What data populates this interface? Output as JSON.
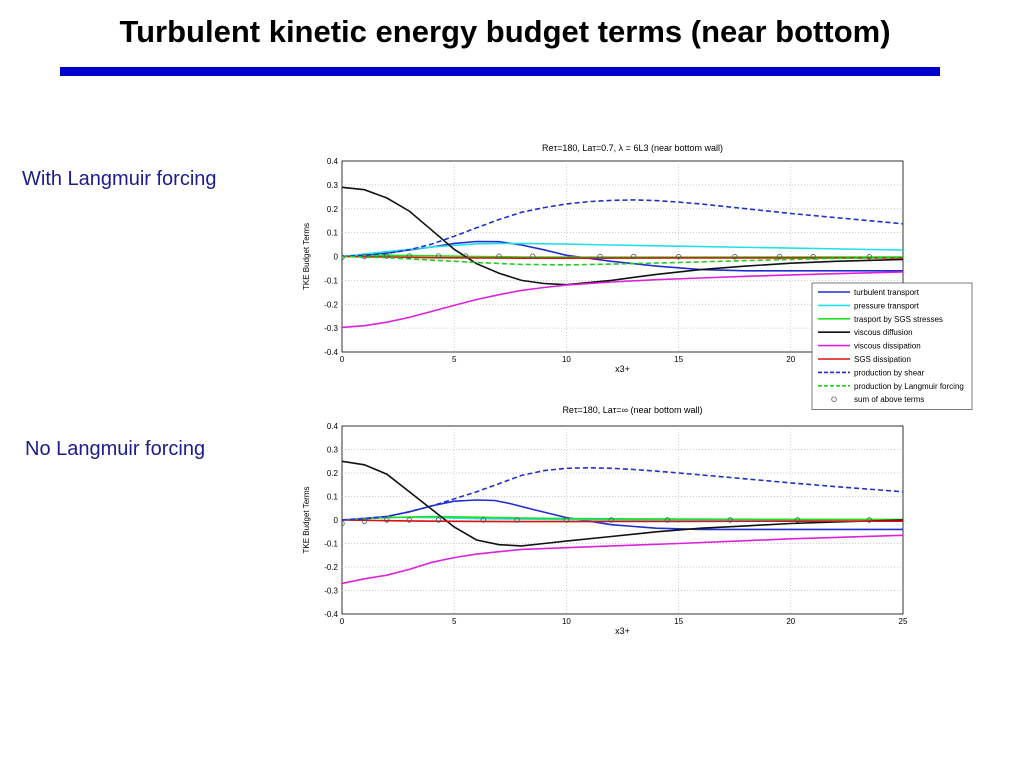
{
  "slide": {
    "title": "Turbulent kinetic energy budget terms (near bottom)",
    "label_top": "With Langmuir forcing",
    "label_bottom": "No Langmuir forcing"
  },
  "chart_data": [
    {
      "type": "line",
      "title": "Reτ=180, Laτ=0.7, λ = 6L3 (near bottom wall)",
      "xlabel": "x3+",
      "ylabel": "TKE Budget Terms",
      "xlim": [
        0,
        25
      ],
      "ylim": [
        -0.4,
        0.4
      ],
      "xticks": [
        0,
        5,
        10,
        15,
        20,
        25
      ],
      "xtick_labels": [
        "0",
        "5",
        "10",
        "15",
        "20",
        ""
      ],
      "yticks": [
        -0.4,
        -0.3,
        -0.2,
        -0.1,
        0,
        0.1,
        0.2,
        0.3,
        0.4
      ],
      "ytick_labels": [
        "-0.4",
        "-0.3",
        "-0.2",
        "-0.1",
        "0",
        "0.1",
        "0.2",
        "0.3",
        "0.4"
      ],
      "grid": true,
      "legend_position": "lower-right",
      "series": [
        {
          "name": "turbulent transport",
          "color": "#1f2fd0",
          "dash": "solid",
          "x": [
            0,
            2,
            4,
            5,
            6,
            7,
            8,
            9,
            10,
            12,
            14,
            16,
            18,
            20,
            22,
            25
          ],
          "y": [
            0,
            0.015,
            0.04,
            0.055,
            0.063,
            0.062,
            0.048,
            0.028,
            0.005,
            -0.02,
            -0.04,
            -0.055,
            -0.06,
            -0.06,
            -0.06,
            -0.06
          ]
        },
        {
          "name": "pressure transport",
          "color": "#22e0ee",
          "dash": "solid",
          "x": [
            0,
            2,
            4,
            6,
            8,
            10,
            12,
            15,
            20,
            25
          ],
          "y": [
            0,
            0.02,
            0.04,
            0.053,
            0.055,
            0.052,
            0.048,
            0.043,
            0.035,
            0.027
          ]
        },
        {
          "name": "trasport by SGS stresses",
          "color": "#22dd22",
          "dash": "solid",
          "x": [
            0,
            2,
            4,
            6,
            8,
            10,
            15,
            20,
            25
          ],
          "y": [
            0,
            0.005,
            0.003,
            0.0,
            -0.002,
            -0.003,
            -0.003,
            -0.002,
            -0.002
          ]
        },
        {
          "name": "viscous diffusion",
          "color": "#111111",
          "dash": "solid",
          "x": [
            0,
            1,
            2,
            3,
            4,
            5,
            6,
            7,
            8,
            9,
            10,
            12,
            14,
            16,
            18,
            20,
            22,
            25
          ],
          "y": [
            0.29,
            0.28,
            0.245,
            0.19,
            0.11,
            0.03,
            -0.03,
            -0.07,
            -0.1,
            -0.113,
            -0.118,
            -0.1,
            -0.075,
            -0.055,
            -0.04,
            -0.028,
            -0.02,
            -0.012
          ]
        },
        {
          "name": "viscous dissipation",
          "color": "#dd22dd",
          "dash": "solid",
          "x": [
            0,
            1,
            2,
            3,
            4,
            5,
            6,
            7,
            8,
            9,
            10,
            12,
            14,
            16,
            18,
            20,
            22,
            25
          ],
          "y": [
            -0.297,
            -0.29,
            -0.275,
            -0.255,
            -0.23,
            -0.205,
            -0.18,
            -0.16,
            -0.142,
            -0.13,
            -0.12,
            -0.107,
            -0.097,
            -0.09,
            -0.083,
            -0.077,
            -0.072,
            -0.065
          ]
        },
        {
          "name": "SGS dissipation",
          "color": "#dd1111",
          "dash": "solid",
          "x": [
            0,
            2,
            4,
            6,
            8,
            10,
            15,
            20,
            25
          ],
          "y": [
            0,
            -0.002,
            -0.005,
            -0.006,
            -0.007,
            -0.007,
            -0.006,
            -0.006,
            -0.006
          ]
        },
        {
          "name": "production by shear",
          "color": "#1f2fd0",
          "dash": "dashed",
          "x": [
            0,
            1,
            2,
            3,
            4,
            5,
            6,
            7,
            8,
            9,
            10,
            11,
            12,
            13,
            14,
            15,
            16,
            18,
            20,
            22,
            25
          ],
          "y": [
            0,
            0.005,
            0.013,
            0.028,
            0.052,
            0.085,
            0.12,
            0.155,
            0.185,
            0.205,
            0.22,
            0.23,
            0.235,
            0.237,
            0.234,
            0.228,
            0.22,
            0.2,
            0.18,
            0.163,
            0.137
          ]
        },
        {
          "name": "production by Langmuir forcing",
          "color": "#22cc22",
          "dash": "dashed",
          "x": [
            0,
            2,
            4,
            6,
            8,
            10,
            12,
            15,
            18,
            20,
            22,
            25
          ],
          "y": [
            0,
            -0.005,
            -0.015,
            -0.025,
            -0.033,
            -0.035,
            -0.032,
            -0.025,
            -0.017,
            -0.012,
            -0.008,
            -0.003
          ]
        },
        {
          "name": "sum of above terms",
          "color": "#555555",
          "dash": "marker",
          "x": [
            0,
            1,
            2,
            3,
            4.3,
            5.5,
            7,
            8.5,
            11.5,
            13,
            15,
            17.5,
            19.5,
            21,
            23.5
          ],
          "y": [
            -0.003,
            0,
            0.002,
            0.002,
            0.002,
            0.002,
            0.001,
            0.001,
            0.0,
            0.0,
            -0.001,
            -0.001,
            -0.001,
            -0.001,
            -0.001
          ]
        }
      ]
    },
    {
      "type": "line",
      "title": "Reτ=180, Laτ=∞ (near bottom wall)",
      "xlabel": "x3+",
      "ylabel": "TKE Budget Terms",
      "xlim": [
        0,
        25
      ],
      "ylim": [
        -0.4,
        0.4
      ],
      "xticks": [
        0,
        5,
        10,
        15,
        20,
        25
      ],
      "xtick_labels": [
        "0",
        "5",
        "10",
        "15",
        "20",
        "25"
      ],
      "yticks": [
        -0.4,
        -0.3,
        -0.2,
        -0.1,
        0,
        0.1,
        0.2,
        0.3,
        0.4
      ],
      "ytick_labels": [
        "-0.4",
        "-0.3",
        "-0.2",
        "-0.1",
        "0",
        "0.1",
        "0.2",
        "0.3",
        "0.4"
      ],
      "grid": true,
      "series": [
        {
          "color": "#1f2fd0",
          "dash": "solid",
          "x": [
            0,
            2,
            3,
            4,
            5,
            6,
            6.8,
            7.5,
            8.5,
            10,
            12,
            14,
            16,
            18,
            20,
            25
          ],
          "y": [
            0,
            0.015,
            0.035,
            0.06,
            0.08,
            0.085,
            0.083,
            0.07,
            0.045,
            0.01,
            -0.02,
            -0.035,
            -0.04,
            -0.04,
            -0.04,
            -0.04
          ]
        },
        {
          "color": "#22e0ee",
          "dash": "solid",
          "x": [
            0,
            2,
            4,
            6,
            8,
            10,
            15,
            20,
            25
          ],
          "y": [
            0,
            0.012,
            0.01,
            0.006,
            0.004,
            0.002,
            0.0,
            -0.003,
            -0.005
          ]
        },
        {
          "color": "#22dd22",
          "dash": "solid",
          "x": [
            0,
            2,
            4,
            6,
            8,
            10,
            15,
            20,
            25
          ],
          "y": [
            0,
            0.01,
            0.015,
            0.012,
            0.008,
            0.006,
            0.004,
            0.003,
            0.002
          ]
        },
        {
          "color": "#111111",
          "dash": "solid",
          "x": [
            0,
            1,
            2,
            3,
            4,
            5,
            6,
            7,
            8,
            9,
            10,
            12,
            14,
            16,
            18,
            20,
            22,
            25
          ],
          "y": [
            0.25,
            0.235,
            0.195,
            0.12,
            0.045,
            -0.03,
            -0.085,
            -0.105,
            -0.11,
            -0.1,
            -0.09,
            -0.07,
            -0.05,
            -0.035,
            -0.025,
            -0.015,
            -0.008,
            0.0
          ]
        },
        {
          "color": "#dd22dd",
          "dash": "solid",
          "x": [
            0,
            1,
            2,
            3,
            4,
            5,
            6,
            7,
            8,
            10,
            12,
            15,
            18,
            20,
            22,
            25
          ],
          "y": [
            -0.27,
            -0.25,
            -0.235,
            -0.21,
            -0.18,
            -0.16,
            -0.145,
            -0.135,
            -0.125,
            -0.118,
            -0.11,
            -0.1,
            -0.088,
            -0.08,
            -0.074,
            -0.065
          ]
        },
        {
          "color": "#dd1111",
          "dash": "solid",
          "x": [
            0,
            2,
            4,
            6,
            8,
            10,
            15,
            20,
            25
          ],
          "y": [
            0,
            -0.003,
            -0.005,
            -0.006,
            -0.007,
            -0.007,
            -0.006,
            -0.005,
            -0.005
          ]
        },
        {
          "color": "#1f2fd0",
          "dash": "dashed",
          "x": [
            0,
            1,
            2,
            3,
            4,
            5,
            6,
            7,
            8,
            9,
            10,
            11,
            12,
            13,
            14,
            15,
            16,
            18,
            20,
            22,
            25
          ],
          "y": [
            0,
            0.005,
            0.015,
            0.035,
            0.06,
            0.09,
            0.12,
            0.155,
            0.19,
            0.21,
            0.22,
            0.222,
            0.22,
            0.215,
            0.208,
            0.2,
            0.192,
            0.175,
            0.158,
            0.142,
            0.12
          ]
        },
        {
          "color": "#555555",
          "dash": "marker",
          "x": [
            0,
            1,
            2,
            3,
            4.3,
            6.3,
            7.8,
            10,
            12,
            14.5,
            17.3,
            20.3,
            23.5
          ],
          "y": [
            -0.015,
            -0.005,
            0.0,
            0.0,
            0.0,
            0.0,
            0.0,
            0.0,
            0.0,
            0.0,
            0.0,
            0.0,
            0.0
          ]
        }
      ]
    }
  ]
}
